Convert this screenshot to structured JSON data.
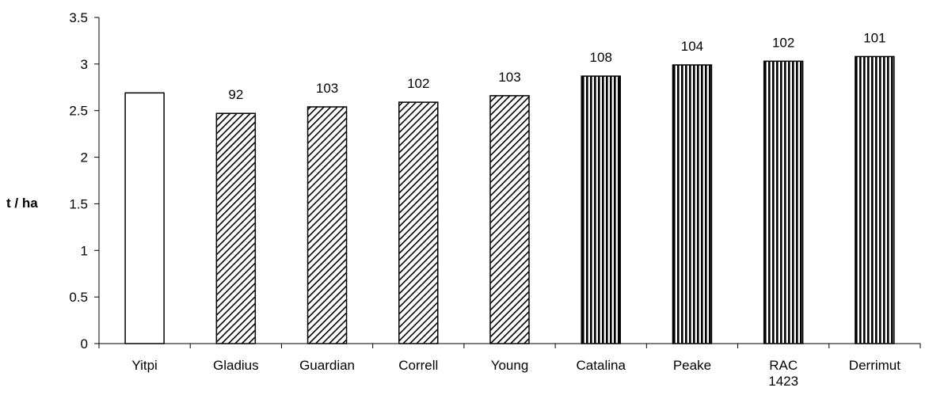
{
  "chart_data": {
    "type": "bar",
    "title": "",
    "xlabel": "",
    "ylabel": "t / ha",
    "ylim": [
      0,
      3.5
    ],
    "yticks": [
      "0",
      "0.5",
      "1",
      "1.5",
      "2",
      "2.5",
      "3",
      "3.5"
    ],
    "grid": false,
    "categories": [
      "Yitpi",
      "Gladius",
      "Guardian",
      "Correll",
      "Young",
      "Catalina",
      "Peake",
      "RAC 1423",
      "Derrimut"
    ],
    "values": [
      2.69,
      2.47,
      2.54,
      2.59,
      2.66,
      2.87,
      2.99,
      3.03,
      3.08
    ],
    "data_labels": [
      "",
      "92",
      "103",
      "102",
      "103",
      "108",
      "104",
      "102",
      "101"
    ],
    "fill_patterns": [
      "solid-white",
      "diagonal-hatch",
      "diagonal-hatch",
      "diagonal-hatch",
      "diagonal-hatch",
      "vertical-stripes",
      "vertical-stripes",
      "vertical-stripes",
      "vertical-stripes"
    ],
    "colors": {
      "bar_outline": "#000000",
      "bar_fill": "#ffffff",
      "pattern": "#000000"
    }
  }
}
